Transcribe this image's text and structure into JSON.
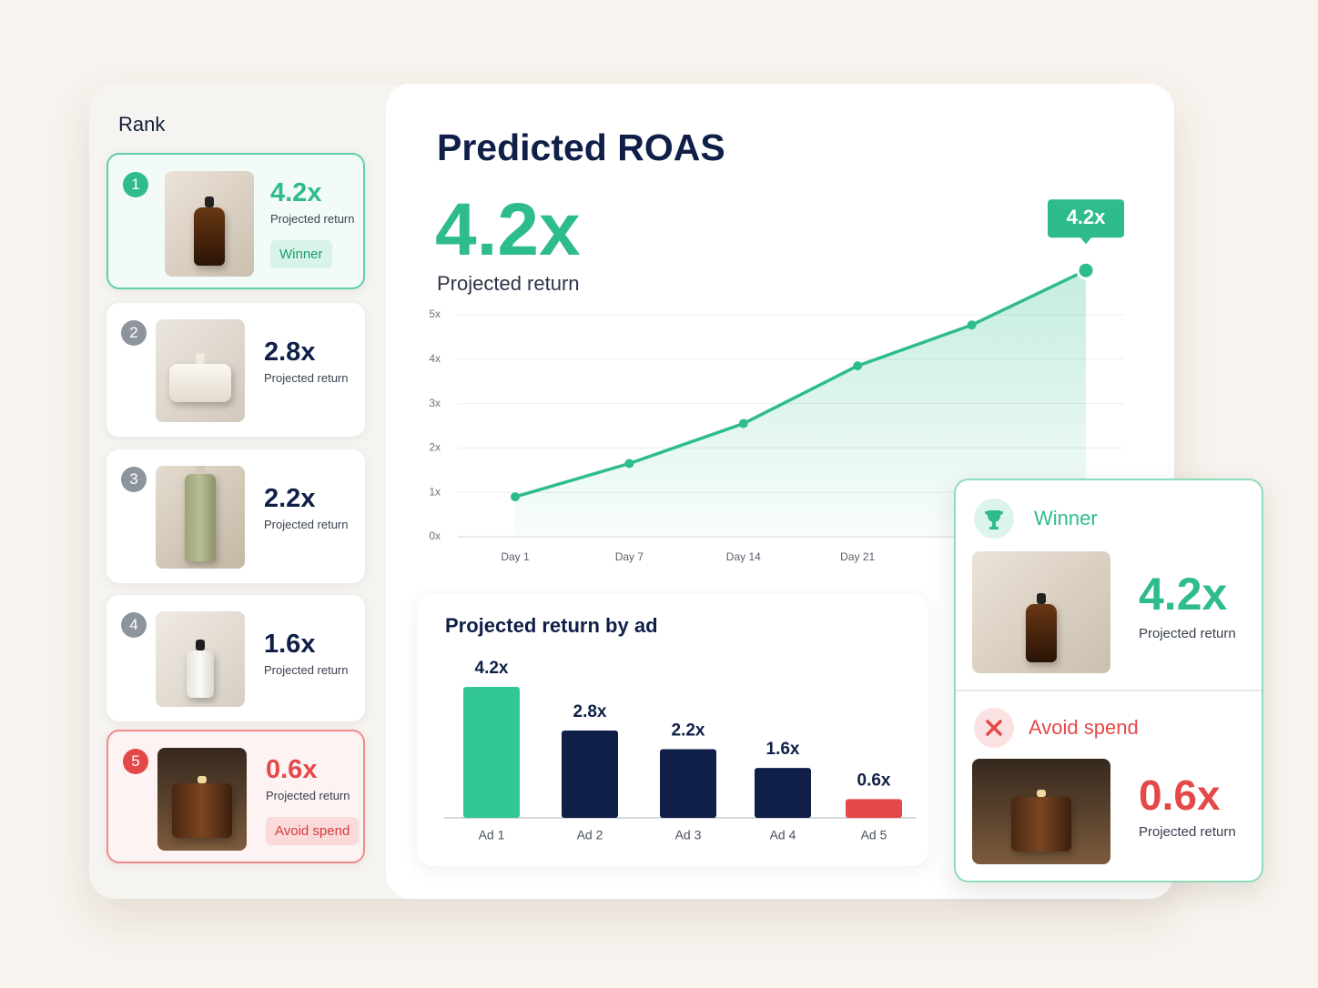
{
  "rank_panel": {
    "title": "Rank",
    "items": [
      {
        "rank": "1",
        "value": "4.2x",
        "caption": "Projected return",
        "badge": "Winner"
      },
      {
        "rank": "2",
        "value": "2.8x",
        "caption": "Projected return"
      },
      {
        "rank": "3",
        "value": "2.2x",
        "caption": "Projected return"
      },
      {
        "rank": "4",
        "value": "1.6x",
        "caption": "Projected return"
      },
      {
        "rank": "5",
        "value": "0.6x",
        "caption": "Projected return",
        "badge": "Avoid spend"
      }
    ]
  },
  "header": {
    "title": "Predicted ROAS",
    "value": "4.2x",
    "caption": "Projected return"
  },
  "chart_data": [
    {
      "type": "line",
      "categories": [
        "Day 1",
        "Day 7",
        "Day 14",
        "Day 21",
        null,
        null
      ],
      "series": [
        {
          "color": "#2ebd8a",
          "values": [
            0.9,
            1.65,
            2.55,
            3.85,
            4.77,
            6.0
          ]
        }
      ],
      "ylim": [
        0,
        6.2
      ],
      "yticks": [
        {
          "value": 0,
          "label": "0x"
        },
        {
          "value": 1,
          "label": "1x"
        },
        {
          "value": 2,
          "label": "2x"
        },
        {
          "value": 3,
          "label": "3x"
        },
        {
          "value": 4,
          "label": "4x"
        },
        {
          "value": 5,
          "label": "5x"
        }
      ],
      "grid": true,
      "annotation": "4.2x"
    },
    {
      "type": "bar",
      "title": "Projected return by ad",
      "categories": [
        "Ad 1",
        "Ad 2",
        "Ad 3",
        "Ad 4",
        "Ad 5"
      ],
      "values": [
        4.2,
        2.8,
        2.2,
        1.6,
        0.6
      ],
      "value_labels": [
        "4.2x",
        "2.8x",
        "2.2x",
        "1.6x",
        "0.6x"
      ],
      "colors": [
        "#34c796",
        "#0f1f48",
        "#0f1f48",
        "#0f1f48",
        "#e54848"
      ]
    }
  ],
  "summary": {
    "winner": {
      "label": "Winner",
      "value": "4.2x",
      "caption": "Projected return"
    },
    "avoid": {
      "label": "Avoid spend",
      "value": "0.6x",
      "caption": "Projected return"
    }
  }
}
